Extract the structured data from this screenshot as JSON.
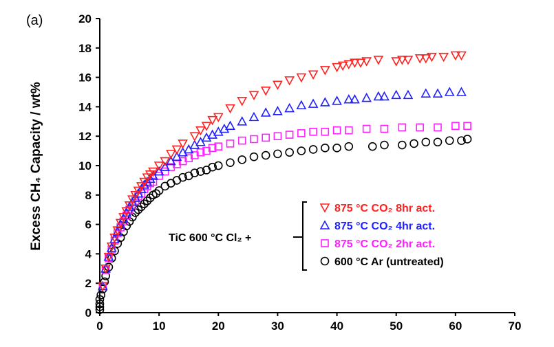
{
  "chart_data": {
    "type": "scatter",
    "panel_label": "(a)",
    "xlabel": "",
    "ylabel": "Excess CH₄ Capacity / wt%",
    "xlim": [
      0,
      70
    ],
    "ylim": [
      0,
      20
    ],
    "xticks": [
      "0",
      "10",
      "20",
      "30",
      "40",
      "50",
      "60",
      "70"
    ],
    "yticks": [
      "0",
      "2",
      "4",
      "6",
      "8",
      "10",
      "12",
      "14",
      "16",
      "18",
      "20"
    ],
    "grid": false,
    "legend": {
      "placement": "right",
      "prefix": "TiC 600 °C Cl₂ +"
    },
    "series": [
      {
        "name": "875 °C CO₂ 8hr act.",
        "marker": "triangle-down",
        "color": "#ff2020",
        "x": [
          0.5,
          1,
          1.5,
          2,
          2.5,
          3,
          3.5,
          4,
          4.5,
          5,
          5.5,
          6,
          6.5,
          7,
          7.5,
          8,
          8.5,
          9,
          10,
          11,
          12,
          13,
          14,
          16,
          17,
          18,
          19,
          20,
          22,
          24,
          26,
          28,
          30,
          32,
          34,
          36,
          38,
          40,
          41,
          42,
          43,
          44,
          45,
          47,
          50,
          51,
          52,
          54,
          55,
          56,
          58,
          60,
          61
        ],
        "y": [
          1.8,
          3.0,
          3.8,
          4.5,
          5.1,
          5.6,
          6.1,
          6.5,
          6.9,
          7.3,
          7.7,
          8.0,
          8.3,
          8.6,
          8.9,
          9.2,
          9.4,
          9.6,
          10.0,
          10.3,
          10.8,
          11.1,
          11.5,
          12.0,
          12.4,
          12.7,
          13.1,
          13.3,
          13.9,
          14.4,
          14.8,
          15.1,
          15.5,
          15.8,
          16.0,
          16.2,
          16.5,
          16.7,
          16.8,
          16.9,
          17.0,
          17.0,
          17.1,
          17.2,
          17.1,
          17.2,
          17.2,
          17.3,
          17.3,
          17.4,
          17.4,
          17.5,
          17.5
        ]
      },
      {
        "name": "875 °C CO₂ 4hr act.",
        "marker": "triangle-up",
        "color": "#2020ff",
        "x": [
          0.5,
          1,
          1.5,
          2,
          2.5,
          3,
          3.5,
          4,
          4.5,
          5,
          5.5,
          6,
          6.5,
          7,
          7.5,
          8,
          8.5,
          9,
          10,
          11,
          12,
          13,
          14,
          15,
          16,
          17,
          18,
          19,
          20,
          21,
          22,
          24,
          26,
          28,
          30,
          32,
          34,
          36,
          38,
          40,
          42,
          43,
          45,
          47,
          48,
          50,
          52,
          55,
          57,
          59,
          61
        ],
        "y": [
          1.8,
          3.0,
          3.8,
          4.4,
          5.0,
          5.5,
          6.0,
          6.4,
          6.8,
          7.2,
          7.5,
          7.8,
          8.1,
          8.4,
          8.7,
          8.9,
          9.1,
          9.3,
          9.6,
          9.9,
          10.3,
          10.6,
          10.9,
          11.1,
          11.4,
          11.6,
          11.9,
          12.1,
          12.3,
          12.5,
          12.7,
          13.0,
          13.3,
          13.6,
          13.7,
          13.9,
          14.1,
          14.2,
          14.3,
          14.4,
          14.5,
          14.5,
          14.6,
          14.7,
          14.7,
          14.8,
          14.8,
          14.9,
          14.9,
          15.0,
          15.0
        ]
      },
      {
        "name": "875 °C CO₂ 2hr act.",
        "marker": "square",
        "color": "#ff20ff",
        "x": [
          0.5,
          1,
          1.5,
          2,
          2.5,
          3,
          3.5,
          4,
          4.5,
          5,
          5.5,
          6,
          6.5,
          7,
          7.5,
          8,
          8.5,
          9,
          10,
          11,
          12,
          13,
          14,
          15,
          16,
          17,
          18,
          19,
          20,
          22,
          24,
          26,
          28,
          30,
          32,
          34,
          36,
          38,
          40,
          42,
          45,
          48,
          51,
          54,
          57,
          60,
          62
        ],
        "y": [
          1.8,
          2.9,
          3.7,
          4.3,
          4.9,
          5.4,
          5.8,
          6.2,
          6.6,
          7.0,
          7.3,
          7.6,
          7.9,
          8.1,
          8.4,
          8.6,
          8.8,
          8.9,
          9.3,
          9.6,
          9.9,
          10.1,
          10.3,
          10.5,
          10.7,
          10.9,
          11.0,
          11.2,
          11.3,
          11.5,
          11.7,
          11.8,
          11.9,
          12.0,
          12.1,
          12.2,
          12.3,
          12.3,
          12.4,
          12.4,
          12.5,
          12.5,
          12.6,
          12.6,
          12.6,
          12.7,
          12.7
        ]
      },
      {
        "name": "600 °C Ar (untreated)",
        "marker": "circle",
        "color": "#000000",
        "x": [
          0,
          0,
          0,
          0,
          0.2,
          0.5,
          0.8,
          1,
          1.5,
          2,
          2.5,
          3,
          3.5,
          4,
          4.5,
          5,
          5.5,
          6,
          6.5,
          7,
          7.5,
          8,
          8.5,
          9,
          9.5,
          10,
          11,
          12,
          13,
          14,
          15,
          16,
          17,
          18,
          19,
          20,
          22,
          24,
          26,
          28,
          30,
          32,
          34,
          36,
          38,
          40,
          42,
          46,
          48,
          51,
          53,
          55,
          57,
          59,
          61,
          62
        ],
        "y": [
          0.2,
          0.4,
          0.6,
          0.9,
          1.2,
          1.6,
          2.1,
          2.5,
          3.1,
          3.7,
          4.2,
          4.7,
          5.1,
          5.5,
          5.9,
          6.2,
          6.5,
          6.8,
          7.0,
          7.2,
          7.4,
          7.6,
          7.8,
          8.0,
          8.1,
          8.3,
          8.6,
          8.8,
          9.0,
          9.2,
          9.3,
          9.5,
          9.6,
          9.7,
          9.9,
          10.0,
          10.2,
          10.4,
          10.6,
          10.7,
          10.8,
          10.9,
          11.0,
          11.1,
          11.2,
          11.2,
          11.3,
          11.3,
          11.4,
          11.4,
          11.5,
          11.6,
          11.6,
          11.7,
          11.7,
          11.8
        ]
      }
    ]
  }
}
